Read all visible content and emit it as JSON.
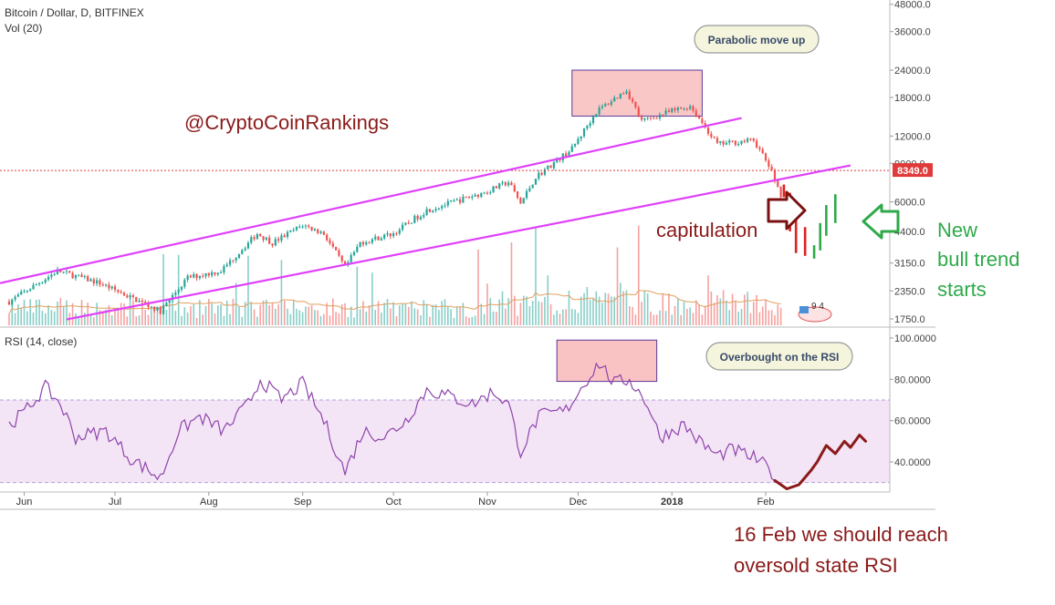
{
  "header": {
    "symbol": "Bitcoin / Dollar, D, BITFINEX",
    "volume": "Vol (20)",
    "rsi": "RSI (14, close)"
  },
  "colors": {
    "up": "#26a69a",
    "down": "#ef5350",
    "channel": "#e040fb",
    "rsi_line": "#8e44ad",
    "rsi_band": "#f3e5f5",
    "annotation_red": "#8b1a1a",
    "annotation_green": "#2eaa4a",
    "box_fill": "#f8b4b4",
    "callout_fill": "#f4f5dc",
    "price_tag": "#e03a3a"
  },
  "annotations": {
    "watermark": "@CryptoCoinRankings",
    "capitulation": "capitulation",
    "new_bull": [
      "New",
      "bull trend",
      "starts"
    ],
    "rsi_note": [
      "16 Feb we should reach",
      "oversold state RSI"
    ],
    "callout_price": "Parabolic move up",
    "callout_rsi": "Overbought on the RSI",
    "current_price_label": "8349.0",
    "badge_text": "9 4"
  },
  "chart_data": [
    {
      "type": "line",
      "name": "price",
      "scale": "log",
      "y_ticks": [
        "48000.0",
        "36000.0",
        "24000.0",
        "18000.0",
        "12000.0",
        "9000.0",
        "6000.0",
        "4400.0",
        "3150.0",
        "2350.0",
        "1750.0"
      ],
      "x_ticks": [
        "Jun",
        "Jul",
        "Aug",
        "Sep",
        "Oct",
        "Nov",
        "Dec",
        "2018",
        "Feb"
      ],
      "current_price": 8349.0,
      "waypoints": [
        [
          "2017-05-27",
          2100
        ],
        [
          "2017-06-12",
          2900
        ],
        [
          "2017-06-26",
          2550
        ],
        [
          "2017-07-16",
          1900
        ],
        [
          "2017-07-25",
          2700
        ],
        [
          "2017-08-05",
          2900
        ],
        [
          "2017-08-17",
          4300
        ],
        [
          "2017-08-22",
          3900
        ],
        [
          "2017-09-01",
          4700
        ],
        [
          "2017-09-08",
          4300
        ],
        [
          "2017-09-15",
          3000
        ],
        [
          "2017-09-20",
          3900
        ],
        [
          "2017-10-01",
          4300
        ],
        [
          "2017-10-12",
          5500
        ],
        [
          "2017-10-21",
          6000
        ],
        [
          "2017-11-01",
          6700
        ],
        [
          "2017-11-08",
          7400
        ],
        [
          "2017-11-12",
          5900
        ],
        [
          "2017-11-17",
          7800
        ],
        [
          "2017-11-29",
          10500
        ],
        [
          "2017-12-07",
          15500
        ],
        [
          "2017-12-17",
          19500
        ],
        [
          "2017-12-22",
          14000
        ],
        [
          "2017-12-28",
          15000
        ],
        [
          "2018-01-07",
          16500
        ],
        [
          "2018-01-16",
          11000
        ],
        [
          "2018-01-28",
          11500
        ],
        [
          "2018-02-02",
          8800
        ],
        [
          "2018-02-06",
          6500
        ]
      ]
    },
    {
      "type": "line",
      "name": "RSI",
      "y_ticks": [
        "100.0000",
        "80.0000",
        "60.0000",
        "40.0000"
      ],
      "ylim": [
        27,
        100
      ],
      "band": [
        30,
        70
      ],
      "waypoints": [
        [
          "2017-05-27",
          58
        ],
        [
          "2017-06-01",
          64
        ],
        [
          "2017-06-08",
          76
        ],
        [
          "2017-06-13",
          68
        ],
        [
          "2017-06-18",
          52
        ],
        [
          "2017-06-28",
          55
        ],
        [
          "2017-07-06",
          42
        ],
        [
          "2017-07-16",
          32
        ],
        [
          "2017-07-22",
          55
        ],
        [
          "2017-07-29",
          62
        ],
        [
          "2017-08-06",
          55
        ],
        [
          "2017-08-14",
          68
        ],
        [
          "2017-08-18",
          80
        ],
        [
          "2017-08-25",
          70
        ],
        [
          "2017-09-01",
          78
        ],
        [
          "2017-09-08",
          60
        ],
        [
          "2017-09-15",
          35
        ],
        [
          "2017-09-21",
          55
        ],
        [
          "2017-09-28",
          52
        ],
        [
          "2017-10-05",
          60
        ],
        [
          "2017-10-12",
          75
        ],
        [
          "2017-10-19",
          72
        ],
        [
          "2017-10-27",
          68
        ],
        [
          "2017-11-03",
          74
        ],
        [
          "2017-11-08",
          68
        ],
        [
          "2017-11-12",
          45
        ],
        [
          "2017-11-18",
          62
        ],
        [
          "2017-11-27",
          65
        ],
        [
          "2017-12-03",
          78
        ],
        [
          "2017-12-08",
          88
        ],
        [
          "2017-12-13",
          78
        ],
        [
          "2017-12-18",
          80
        ],
        [
          "2017-12-24",
          68
        ],
        [
          "2017-12-28",
          52
        ],
        [
          "2018-01-05",
          58
        ],
        [
          "2018-01-10",
          50
        ],
        [
          "2018-01-16",
          43
        ],
        [
          "2018-01-21",
          46
        ],
        [
          "2018-01-28",
          42
        ],
        [
          "2018-02-01",
          38
        ],
        [
          "2018-02-04",
          33
        ]
      ],
      "projection": [
        [
          "2018-02-04",
          31
        ],
        [
          "2018-02-08",
          27
        ],
        [
          "2018-02-12",
          29
        ],
        [
          "2018-02-16",
          36
        ],
        [
          "2018-02-18",
          40
        ],
        [
          "2018-02-21",
          48
        ],
        [
          "2018-02-24",
          44
        ],
        [
          "2018-02-27",
          50
        ],
        [
          "2018-03-01",
          47
        ],
        [
          "2018-03-04",
          53
        ],
        [
          "2018-03-06",
          50
        ]
      ]
    }
  ]
}
